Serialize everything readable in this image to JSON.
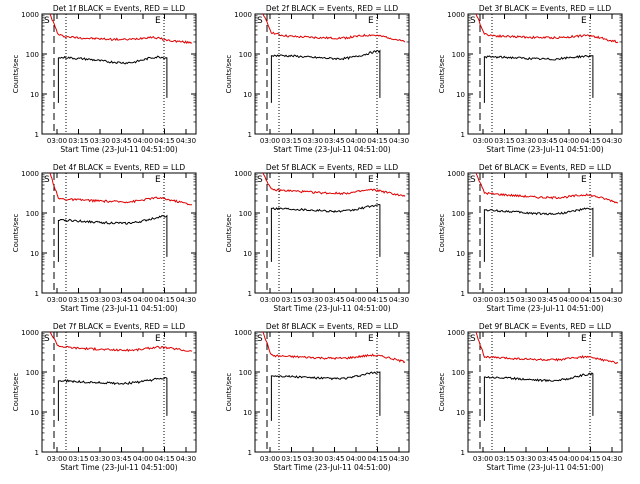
{
  "chart_data": [
    {
      "type": "line",
      "title": "Det 1f BLACK = Events, RED = LLD",
      "xlabel": "Start Time (23-Jul-11 04:51:00)",
      "ylabel": "Counts/sec",
      "x_ticks": [
        "03:00",
        "03:15",
        "03:30",
        "03:45",
        "04:00",
        "04:15",
        "04:30"
      ],
      "y_ticks": [
        "1",
        "10",
        "100",
        "1000"
      ],
      "ylim": [
        1,
        1000
      ],
      "yscale": "log",
      "markers": {
        "left": "S",
        "right": "E"
      },
      "series": [
        {
          "name": "LLD",
          "color": "#e00000",
          "values": [
            1000,
            300,
            270,
            260,
            250,
            245,
            240,
            235,
            232,
            230,
            235,
            250,
            265,
            250,
            220,
            210,
            200,
            190
          ]
        },
        {
          "name": "Events",
          "color": "#000000",
          "values": [
            null,
            80,
            82,
            78,
            76,
            72,
            68,
            64,
            62,
            60,
            62,
            70,
            80,
            85,
            80,
            null,
            null,
            null
          ]
        }
      ]
    },
    {
      "type": "line",
      "title": "Det 2f BLACK = Events, RED = LLD",
      "xlabel": "Start Time (23-Jul-11 04:51:00)",
      "ylabel": "Counts/sec",
      "x_ticks": [
        "03:00",
        "03:15",
        "03:30",
        "03:45",
        "04:00",
        "04:15",
        "04:30"
      ],
      "y_ticks": [
        "1",
        "10",
        "100",
        "1000"
      ],
      "ylim": [
        1,
        1000
      ],
      "yscale": "log",
      "markers": {
        "left": "S",
        "right": "E"
      },
      "series": [
        {
          "name": "LLD",
          "color": "#e00000",
          "values": [
            1000,
            350,
            300,
            280,
            270,
            265,
            260,
            255,
            250,
            250,
            255,
            270,
            290,
            300,
            280,
            260,
            230,
            200
          ]
        },
        {
          "name": "Events",
          "color": "#000000",
          "values": [
            null,
            90,
            92,
            90,
            88,
            85,
            82,
            80,
            78,
            76,
            78,
            85,
            95,
            110,
            120,
            null,
            null,
            null
          ]
        }
      ]
    },
    {
      "type": "line",
      "title": "Det 3f BLACK = Events, RED = LLD",
      "xlabel": "Start Time (23-Jul-11 04:51:00)",
      "ylabel": "Counts/sec",
      "x_ticks": [
        "03:00",
        "03:15",
        "03:30",
        "03:45",
        "04:00",
        "04:15",
        "04:30"
      ],
      "y_ticks": [
        "1",
        "10",
        "100",
        "1000"
      ],
      "ylim": [
        1,
        1000
      ],
      "yscale": "log",
      "markers": {
        "left": "S",
        "right": "E"
      },
      "series": [
        {
          "name": "LLD",
          "color": "#e00000",
          "values": [
            1000,
            320,
            290,
            280,
            275,
            270,
            265,
            260,
            258,
            255,
            258,
            265,
            280,
            290,
            280,
            250,
            220,
            200
          ]
        },
        {
          "name": "Events",
          "color": "#000000",
          "values": [
            null,
            85,
            84,
            83,
            82,
            80,
            78,
            76,
            75,
            74,
            76,
            80,
            85,
            88,
            90,
            null,
            null,
            null
          ]
        }
      ]
    },
    {
      "type": "line",
      "title": "Det 4f BLACK = Events, RED = LLD",
      "xlabel": "Start Time (23-Jul-11 04:51:00)",
      "ylabel": "Counts/sec",
      "x_ticks": [
        "03:00",
        "03:15",
        "03:30",
        "03:45",
        "04:00",
        "04:15",
        "04:30"
      ],
      "y_ticks": [
        "1",
        "10",
        "100",
        "1000"
      ],
      "ylim": [
        1,
        1000
      ],
      "yscale": "log",
      "markers": {
        "left": "S",
        "right": "E"
      },
      "series": [
        {
          "name": "LLD",
          "color": "#e00000",
          "values": [
            1000,
            230,
            220,
            215,
            210,
            205,
            200,
            195,
            192,
            190,
            195,
            210,
            230,
            240,
            220,
            200,
            180,
            160
          ]
        },
        {
          "name": "Events",
          "color": "#000000",
          "values": [
            null,
            65,
            66,
            64,
            62,
            60,
            58,
            57,
            56,
            55,
            57,
            62,
            70,
            80,
            85,
            null,
            null,
            null
          ]
        }
      ]
    },
    {
      "type": "line",
      "title": "Det 5f BLACK = Events, RED = LLD",
      "xlabel": "Start Time (23-Jul-11 04:51:00)",
      "ylabel": "Counts/sec",
      "x_ticks": [
        "03:00",
        "03:15",
        "03:30",
        "03:45",
        "04:00",
        "04:15",
        "04:30"
      ],
      "y_ticks": [
        "1",
        "10",
        "100",
        "1000"
      ],
      "ylim": [
        1,
        1000
      ],
      "yscale": "log",
      "markers": {
        "left": "S",
        "right": "E"
      },
      "series": [
        {
          "name": "LLD",
          "color": "#e00000",
          "values": [
            1000,
            380,
            370,
            360,
            350,
            340,
            330,
            320,
            315,
            310,
            315,
            330,
            360,
            380,
            360,
            320,
            290,
            260
          ]
        },
        {
          "name": "Events",
          "color": "#000000",
          "values": [
            null,
            130,
            130,
            128,
            125,
            122,
            118,
            115,
            112,
            110,
            112,
            120,
            135,
            150,
            160,
            null,
            null,
            null
          ]
        }
      ]
    },
    {
      "type": "line",
      "title": "Det 6f BLACK = Events, RED = LLD",
      "xlabel": "Start Time (23-Jul-11 04:51:00)",
      "ylabel": "Counts/sec",
      "x_ticks": [
        "03:00",
        "03:15",
        "03:30",
        "03:45",
        "04:00",
        "04:15",
        "04:30"
      ],
      "y_ticks": [
        "1",
        "10",
        "100",
        "1000"
      ],
      "ylim": [
        1,
        1000
      ],
      "yscale": "log",
      "markers": {
        "left": "S",
        "right": "E"
      },
      "series": [
        {
          "name": "LLD",
          "color": "#e00000",
          "values": [
            1000,
            320,
            300,
            290,
            280,
            270,
            260,
            250,
            245,
            240,
            245,
            255,
            270,
            285,
            270,
            240,
            210,
            180
          ]
        },
        {
          "name": "Events",
          "color": "#000000",
          "values": [
            null,
            120,
            115,
            112,
            110,
            105,
            100,
            98,
            96,
            95,
            97,
            105,
            115,
            125,
            130,
            null,
            null,
            null
          ]
        }
      ]
    },
    {
      "type": "line",
      "title": "Det 7f BLACK = Events, RED = LLD",
      "xlabel": "Start Time (23-Jul-11 04:51:00)",
      "ylabel": "Counts/sec",
      "x_ticks": [
        "03:00",
        "03:15",
        "03:30",
        "03:45",
        "04:00",
        "04:15",
        "04:30"
      ],
      "y_ticks": [
        "1",
        "10",
        "100",
        "1000"
      ],
      "ylim": [
        1,
        1000
      ],
      "yscale": "log",
      "markers": {
        "left": "S",
        "right": "E"
      },
      "series": [
        {
          "name": "LLD",
          "color": "#e00000",
          "values": [
            1000,
            450,
            420,
            400,
            390,
            380,
            370,
            360,
            355,
            350,
            355,
            370,
            400,
            420,
            400,
            380,
            350,
            330
          ]
        },
        {
          "name": "Events",
          "color": "#000000",
          "values": [
            null,
            60,
            60,
            58,
            56,
            55,
            54,
            53,
            52,
            52,
            54,
            58,
            62,
            68,
            70,
            null,
            null,
            null
          ]
        }
      ]
    },
    {
      "type": "line",
      "title": "Det 8f BLACK = Events, RED = LLD",
      "xlabel": "Start Time (23-Jul-11 04:51:00)",
      "ylabel": "Counts/sec",
      "x_ticks": [
        "03:00",
        "03:15",
        "03:30",
        "03:45",
        "04:00",
        "04:15",
        "04:30"
      ],
      "y_ticks": [
        "1",
        "10",
        "100",
        "1000"
      ],
      "ylim": [
        1,
        1000
      ],
      "yscale": "log",
      "markers": {
        "left": "S",
        "right": "E"
      },
      "series": [
        {
          "name": "LLD",
          "color": "#e00000",
          "values": [
            1000,
            260,
            250,
            245,
            240,
            235,
            230,
            225,
            222,
            220,
            224,
            235,
            250,
            265,
            250,
            230,
            200,
            180
          ]
        },
        {
          "name": "Events",
          "color": "#000000",
          "values": [
            null,
            80,
            80,
            78,
            76,
            74,
            72,
            70,
            69,
            68,
            70,
            76,
            85,
            95,
            100,
            null,
            null,
            null
          ]
        }
      ]
    },
    {
      "type": "line",
      "title": "Det 9f BLACK = Events, RED = LLD",
      "xlabel": "Start Time (23-Jul-11 04:51:00)",
      "ylabel": "Counts/sec",
      "x_ticks": [
        "03:00",
        "03:15",
        "03:30",
        "03:45",
        "04:00",
        "04:15",
        "04:30"
      ],
      "y_ticks": [
        "1",
        "10",
        "100",
        "1000"
      ],
      "ylim": [
        1,
        1000
      ],
      "yscale": "log",
      "markers": {
        "left": "S",
        "right": "E"
      },
      "series": [
        {
          "name": "LLD",
          "color": "#e00000",
          "values": [
            1000,
            240,
            230,
            225,
            220,
            215,
            210,
            205,
            202,
            200,
            205,
            215,
            230,
            240,
            225,
            205,
            185,
            170
          ]
        },
        {
          "name": "Events",
          "color": "#000000",
          "values": [
            null,
            75,
            74,
            72,
            70,
            68,
            66,
            64,
            62,
            61,
            63,
            68,
            76,
            85,
            90,
            null,
            null,
            null
          ]
        }
      ]
    }
  ]
}
